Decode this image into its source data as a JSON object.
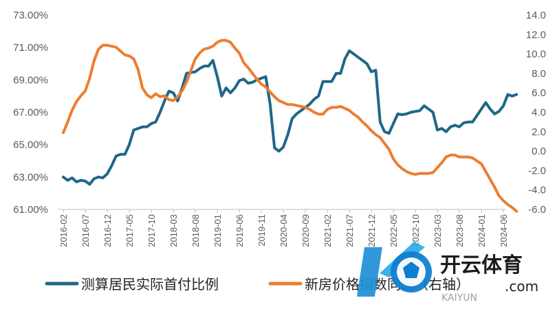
{
  "chart_data": {
    "type": "line",
    "y_left": {
      "min": 61,
      "max": 73,
      "step": 2,
      "tick_labels": [
        "61.00%",
        "63.00%",
        "65.00%",
        "67.00%",
        "69.00%",
        "71.00%",
        "73.00%"
      ]
    },
    "y_right": {
      "min": -6,
      "max": 14,
      "step": 2,
      "tick_labels": [
        "-6.0",
        "-4.0",
        "-2.0",
        "0.0",
        "2.0",
        "4.0",
        "6.0",
        "8.0",
        "10.0",
        "12.0",
        "14.0"
      ]
    },
    "x_tick_labels": [
      "2016-02",
      "2016-07",
      "2016-12",
      "2017-05",
      "2017-10",
      "2018-03",
      "2018-08",
      "2019-01",
      "2019-06",
      "2019-11",
      "2020-04",
      "2020-09",
      "2021-02",
      "2021-07",
      "2021-12",
      "2022-05",
      "2022-10",
      "2023-03",
      "2023-08",
      "2024-01",
      "2024-06"
    ],
    "grid": false,
    "legend_position": "bottom",
    "series": [
      {
        "name": "测算居民实际首付比例",
        "axis": "left",
        "color": "#1f6788",
        "points": [
          [
            "2016-02",
            63.0
          ],
          [
            "2016-03",
            62.8
          ],
          [
            "2016-04",
            62.95
          ],
          [
            "2016-05",
            62.7
          ],
          [
            "2016-06",
            62.8
          ],
          [
            "2016-07",
            62.75
          ],
          [
            "2016-08",
            62.55
          ],
          [
            "2016-09",
            62.9
          ],
          [
            "2016-10",
            63.0
          ],
          [
            "2016-11",
            62.95
          ],
          [
            "2016-12",
            63.2
          ],
          [
            "2017-01",
            63.7
          ],
          [
            "2017-02",
            64.3
          ],
          [
            "2017-03",
            64.4
          ],
          [
            "2017-04",
            64.4
          ],
          [
            "2017-05",
            65.0
          ],
          [
            "2017-06",
            65.9
          ],
          [
            "2017-07",
            66.0
          ],
          [
            "2017-08",
            66.1
          ],
          [
            "2017-09",
            66.1
          ],
          [
            "2017-10",
            66.3
          ],
          [
            "2017-11",
            66.4
          ],
          [
            "2017-12",
            67.0
          ],
          [
            "2018-01",
            67.7
          ],
          [
            "2018-02",
            68.3
          ],
          [
            "2018-03",
            68.2
          ],
          [
            "2018-04",
            67.7
          ],
          [
            "2018-05",
            68.5
          ],
          [
            "2018-06",
            69.4
          ],
          [
            "2018-07",
            69.45
          ],
          [
            "2018-08",
            69.5
          ],
          [
            "2018-09",
            69.7
          ],
          [
            "2018-10",
            69.85
          ],
          [
            "2018-11",
            69.85
          ],
          [
            "2018-12",
            70.2
          ],
          [
            "2019-01",
            69.2
          ],
          [
            "2019-02",
            68.0
          ],
          [
            "2019-03",
            68.5
          ],
          [
            "2019-04",
            68.2
          ],
          [
            "2019-05",
            68.5
          ],
          [
            "2019-06",
            68.95
          ],
          [
            "2019-07",
            69.05
          ],
          [
            "2019-08",
            68.8
          ],
          [
            "2019-09",
            68.85
          ],
          [
            "2019-10",
            69.0
          ],
          [
            "2019-11",
            69.1
          ],
          [
            "2019-12",
            69.2
          ],
          [
            "2020-01",
            67.5
          ],
          [
            "2020-02",
            64.8
          ],
          [
            "2020-03",
            64.6
          ],
          [
            "2020-04",
            64.85
          ],
          [
            "2020-05",
            65.6
          ],
          [
            "2020-06",
            66.6
          ],
          [
            "2020-07",
            66.9
          ],
          [
            "2020-08",
            67.1
          ],
          [
            "2020-09",
            67.3
          ],
          [
            "2020-10",
            67.5
          ],
          [
            "2020-11",
            67.8
          ],
          [
            "2020-12",
            68.0
          ],
          [
            "2021-01",
            68.9
          ],
          [
            "2021-02",
            68.9
          ],
          [
            "2021-03",
            68.9
          ],
          [
            "2021-04",
            69.4
          ],
          [
            "2021-05",
            69.4
          ],
          [
            "2021-06",
            70.3
          ],
          [
            "2021-07",
            70.8
          ],
          [
            "2021-08",
            70.6
          ],
          [
            "2021-09",
            70.4
          ],
          [
            "2021-10",
            70.2
          ],
          [
            "2021-11",
            70.0
          ],
          [
            "2021-12",
            69.5
          ],
          [
            "2022-01",
            69.6
          ],
          [
            "2022-02",
            66.4
          ],
          [
            "2022-03",
            65.8
          ],
          [
            "2022-04",
            65.7
          ],
          [
            "2022-05",
            66.3
          ],
          [
            "2022-06",
            66.9
          ],
          [
            "2022-07",
            66.85
          ],
          [
            "2022-08",
            66.9
          ],
          [
            "2022-09",
            67.0
          ],
          [
            "2022-10",
            67.05
          ],
          [
            "2022-11",
            67.1
          ],
          [
            "2022-12",
            67.4
          ],
          [
            "2023-01",
            67.2
          ],
          [
            "2023-02",
            67.0
          ],
          [
            "2023-03",
            65.9
          ],
          [
            "2023-04",
            66.0
          ],
          [
            "2023-05",
            65.8
          ],
          [
            "2023-06",
            66.1
          ],
          [
            "2023-07",
            66.2
          ],
          [
            "2023-08",
            66.1
          ],
          [
            "2023-09",
            66.35
          ],
          [
            "2023-10",
            66.4
          ],
          [
            "2023-11",
            66.4
          ],
          [
            "2023-12",
            66.8
          ],
          [
            "2024-01",
            67.2
          ],
          [
            "2024-02",
            67.6
          ],
          [
            "2024-03",
            67.2
          ],
          [
            "2024-04",
            66.9
          ],
          [
            "2024-05",
            67.05
          ],
          [
            "2024-06",
            67.4
          ],
          [
            "2024-07",
            68.1
          ],
          [
            "2024-08",
            68.0
          ],
          [
            "2024-09",
            68.1
          ]
        ]
      },
      {
        "name": "新房价格指数同比（右轴）",
        "axis": "right",
        "color": "#ed7d31",
        "points": [
          [
            "2016-02",
            1.9
          ],
          [
            "2016-03",
            3.0
          ],
          [
            "2016-04",
            4.2
          ],
          [
            "2016-05",
            5.1
          ],
          [
            "2016-06",
            5.7
          ],
          [
            "2016-07",
            6.2
          ],
          [
            "2016-08",
            7.5
          ],
          [
            "2016-09",
            9.3
          ],
          [
            "2016-10",
            10.5
          ],
          [
            "2016-11",
            10.9
          ],
          [
            "2016-12",
            10.9
          ],
          [
            "2017-01",
            10.8
          ],
          [
            "2017-02",
            10.7
          ],
          [
            "2017-03",
            10.3
          ],
          [
            "2017-04",
            9.9
          ],
          [
            "2017-05",
            9.8
          ],
          [
            "2017-06",
            9.5
          ],
          [
            "2017-07",
            8.4
          ],
          [
            "2017-08",
            6.5
          ],
          [
            "2017-09",
            5.8
          ],
          [
            "2017-10",
            5.5
          ],
          [
            "2017-11",
            5.9
          ],
          [
            "2017-12",
            5.6
          ],
          [
            "2018-01",
            5.7
          ],
          [
            "2018-02",
            5.3
          ],
          [
            "2018-03",
            5.2
          ],
          [
            "2018-04",
            5.6
          ],
          [
            "2018-05",
            6.2
          ],
          [
            "2018-06",
            7.1
          ],
          [
            "2018-07",
            8.3
          ],
          [
            "2018-08",
            9.5
          ],
          [
            "2018-09",
            10.1
          ],
          [
            "2018-10",
            10.5
          ],
          [
            "2018-11",
            10.6
          ],
          [
            "2018-12",
            10.8
          ],
          [
            "2019-01",
            11.2
          ],
          [
            "2019-02",
            11.4
          ],
          [
            "2019-03",
            11.4
          ],
          [
            "2019-04",
            11.2
          ],
          [
            "2019-05",
            10.6
          ],
          [
            "2019-06",
            10.1
          ],
          [
            "2019-07",
            9.1
          ],
          [
            "2019-08",
            8.6
          ],
          [
            "2019-09",
            8.0
          ],
          [
            "2019-10",
            7.4
          ],
          [
            "2019-11",
            6.9
          ],
          [
            "2019-12",
            6.6
          ],
          [
            "2020-01",
            6.1
          ],
          [
            "2020-02",
            5.6
          ],
          [
            "2020-03",
            5.2
          ],
          [
            "2020-04",
            5.0
          ],
          [
            "2020-05",
            4.8
          ],
          [
            "2020-06",
            4.8
          ],
          [
            "2020-07",
            4.7
          ],
          [
            "2020-08",
            4.6
          ],
          [
            "2020-09",
            4.5
          ],
          [
            "2020-10",
            4.3
          ],
          [
            "2020-11",
            4.0
          ],
          [
            "2020-12",
            3.8
          ],
          [
            "2021-01",
            3.8
          ],
          [
            "2021-02",
            4.3
          ],
          [
            "2021-03",
            4.5
          ],
          [
            "2021-04",
            4.5
          ],
          [
            "2021-05",
            4.6
          ],
          [
            "2021-06",
            4.4
          ],
          [
            "2021-07",
            4.2
          ],
          [
            "2021-08",
            3.8
          ],
          [
            "2021-09",
            3.5
          ],
          [
            "2021-10",
            3.0
          ],
          [
            "2021-11",
            2.6
          ],
          [
            "2021-12",
            2.1
          ],
          [
            "2022-01",
            1.7
          ],
          [
            "2022-02",
            1.4
          ],
          [
            "2022-03",
            0.8
          ],
          [
            "2022-04",
            0.2
          ],
          [
            "2022-05",
            -0.8
          ],
          [
            "2022-06",
            -1.4
          ],
          [
            "2022-07",
            -1.8
          ],
          [
            "2022-08",
            -2.1
          ],
          [
            "2022-09",
            -2.3
          ],
          [
            "2022-10",
            -2.4
          ],
          [
            "2022-11",
            -2.3
          ],
          [
            "2022-12",
            -2.3
          ],
          [
            "2023-01",
            -2.3
          ],
          [
            "2023-02",
            -2.2
          ],
          [
            "2023-03",
            -1.7
          ],
          [
            "2023-04",
            -1.2
          ],
          [
            "2023-05",
            -0.6
          ],
          [
            "2023-06",
            -0.4
          ],
          [
            "2023-07",
            -0.4
          ],
          [
            "2023-08",
            -0.6
          ],
          [
            "2023-09",
            -0.6
          ],
          [
            "2023-10",
            -0.6
          ],
          [
            "2023-11",
            -0.7
          ],
          [
            "2023-12",
            -1.0
          ],
          [
            "2024-01",
            -1.3
          ],
          [
            "2024-02",
            -2.1
          ],
          [
            "2024-03",
            -2.9
          ],
          [
            "2024-04",
            -3.7
          ],
          [
            "2024-05",
            -4.6
          ],
          [
            "2024-06",
            -5.1
          ],
          [
            "2024-07",
            -5.5
          ],
          [
            "2024-08",
            -5.8
          ],
          [
            "2024-09",
            -6.2
          ]
        ]
      }
    ]
  },
  "watermark": {
    "brand": "开云体育",
    "url": ".com",
    "small": "KAIYUN"
  }
}
